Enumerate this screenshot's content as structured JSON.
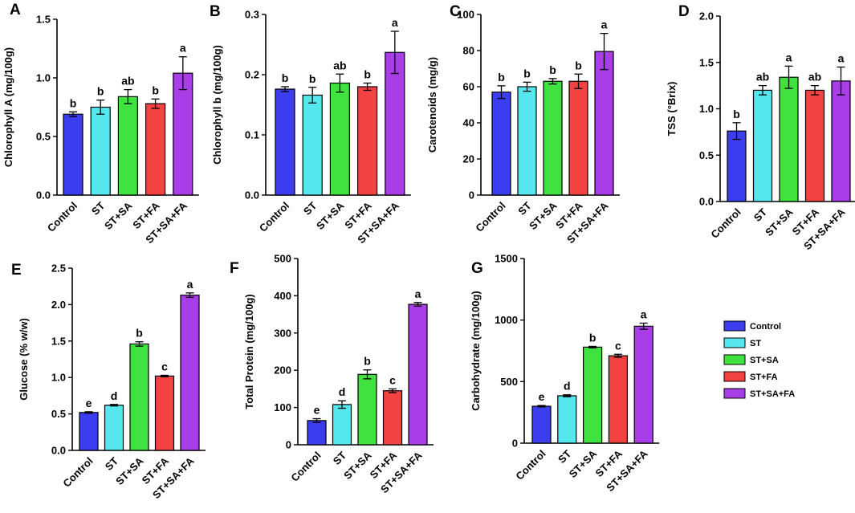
{
  "colors": {
    "Control": "#3d3df0",
    "ST": "#55e6ee",
    "ST+SA": "#3fe23f",
    "ST+FA": "#f24242",
    "ST+SA+FA": "#a93ee8"
  },
  "chart_data": [
    {
      "id": "A",
      "type": "bar",
      "panel_label": "A",
      "ylabel": "Chlorophyll A (mg/100g)",
      "categories": [
        "Control",
        "ST",
        "ST+SA",
        "ST+FA",
        "ST+SA+FA"
      ],
      "values": [
        0.69,
        0.75,
        0.84,
        0.78,
        1.04
      ],
      "errors": [
        0.02,
        0.06,
        0.06,
        0.04,
        0.14
      ],
      "letters": [
        "b",
        "b",
        "ab",
        "b",
        "a"
      ],
      "ylim": [
        0,
        1.5
      ],
      "yticks": [
        0.0,
        0.5,
        1.0,
        1.5
      ],
      "tickfmt": 1
    },
    {
      "id": "B",
      "type": "bar",
      "panel_label": "B",
      "ylabel": "Chlorophyll b (mg/100g)",
      "categories": [
        "Control",
        "ST",
        "ST+SA",
        "ST+FA",
        "ST+SA+FA"
      ],
      "values": [
        0.176,
        0.166,
        0.186,
        0.18,
        0.237
      ],
      "errors": [
        0.004,
        0.013,
        0.015,
        0.006,
        0.035
      ],
      "letters": [
        "b",
        "b",
        "ab",
        "b",
        "a"
      ],
      "ylim": [
        0,
        0.3
      ],
      "yticks": [
        0.0,
        0.1,
        0.2,
        0.3
      ],
      "tickfmt": 1
    },
    {
      "id": "C",
      "type": "bar",
      "panel_label": "C",
      "ylabel": "Carotenoids (mg/g)",
      "categories": [
        "Control",
        "ST",
        "ST+SA",
        "ST+FA",
        "ST+SA+FA"
      ],
      "values": [
        57,
        60,
        63,
        63,
        79.5
      ],
      "errors": [
        3.5,
        2.5,
        1.5,
        4,
        10
      ],
      "letters": [
        "b",
        "b",
        "b",
        "b",
        "a"
      ],
      "ylim": [
        0,
        100
      ],
      "yticks": [
        0,
        20,
        40,
        60,
        80,
        100
      ],
      "tickfmt": 0
    },
    {
      "id": "D",
      "type": "bar",
      "panel_label": "D",
      "ylabel": "TSS (°Brix)",
      "categories": [
        "Control",
        "ST",
        "ST+SA",
        "ST+FA",
        "ST+SA+FA"
      ],
      "values": [
        0.76,
        1.2,
        1.34,
        1.2,
        1.3
      ],
      "errors": [
        0.09,
        0.05,
        0.12,
        0.05,
        0.15
      ],
      "letters": [
        "b",
        "ab",
        "a",
        "ab",
        "a"
      ],
      "ylim": [
        0,
        2.0
      ],
      "yticks": [
        0.0,
        0.5,
        1.0,
        1.5,
        2.0
      ],
      "tickfmt": 1
    },
    {
      "id": "E",
      "type": "bar",
      "panel_label": "E",
      "ylabel": "Glucose (% w/w)",
      "categories": [
        "Control",
        "ST",
        "ST+SA",
        "ST+FA",
        "ST+SA+FA"
      ],
      "values": [
        0.52,
        0.62,
        1.46,
        1.02,
        2.13
      ],
      "errors": [
        0.01,
        0.01,
        0.03,
        0.01,
        0.03
      ],
      "letters": [
        "e",
        "d",
        "b",
        "c",
        "a"
      ],
      "ylim": [
        0,
        2.5
      ],
      "yticks": [
        0.0,
        0.5,
        1.0,
        1.5,
        2.0,
        2.5
      ],
      "tickfmt": 1
    },
    {
      "id": "F",
      "type": "bar",
      "panel_label": "F",
      "ylabel": "Total Protein (mg/100g)",
      "categories": [
        "Control",
        "ST",
        "ST+SA",
        "ST+FA",
        "ST+SA+FA"
      ],
      "values": [
        65,
        108,
        189,
        145,
        377
      ],
      "errors": [
        5,
        10,
        12,
        5,
        5
      ],
      "letters": [
        "e",
        "d",
        "b",
        "c",
        "a"
      ],
      "ylim": [
        0,
        500
      ],
      "yticks": [
        0,
        100,
        200,
        300,
        400,
        500
      ],
      "tickfmt": 0
    },
    {
      "id": "G",
      "type": "bar",
      "panel_label": "G",
      "ylabel": "Carbohydrate (mg/100g)",
      "categories": [
        "Control",
        "ST",
        "ST+SA",
        "ST+FA",
        "ST+SA+FA"
      ],
      "values": [
        300,
        385,
        780,
        710,
        950
      ],
      "errors": [
        6,
        8,
        6,
        12,
        25
      ],
      "letters": [
        "e",
        "d",
        "b",
        "c",
        "a"
      ],
      "ylim": [
        0,
        1500
      ],
      "yticks": [
        0,
        500,
        1000,
        1500
      ],
      "tickfmt": 0
    }
  ],
  "legend": {
    "entries": [
      "Control",
      "ST",
      "ST+SA",
      "ST+FA",
      "ST+SA+FA"
    ]
  }
}
